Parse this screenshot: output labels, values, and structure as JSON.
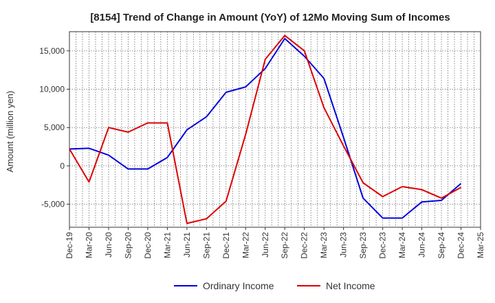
{
  "chart_data": {
    "type": "line",
    "title": "[8154]  Trend of Change in Amount (YoY) of 12Mo Moving Sum of Incomes",
    "xlabel": "",
    "ylabel": "Amount (million yen)",
    "ylim": [
      -8000,
      17500
    ],
    "yticks": [
      -5000,
      0,
      5000,
      10000,
      15000
    ],
    "ytick_labels": [
      "-5,000",
      "0",
      "5,000",
      "10,000",
      "15,000"
    ],
    "x_tick_labels": [
      "Dec-19",
      "Mar-20",
      "Jun-20",
      "Sep-20",
      "Dec-20",
      "Mar-21",
      "Jun-21",
      "Sep-21",
      "Dec-21",
      "Mar-22",
      "Jun-22",
      "Sep-22",
      "Dec-22",
      "Mar-23",
      "Jun-23",
      "Sep-23",
      "Dec-23",
      "Mar-24",
      "Jun-24",
      "Sep-24",
      "Dec-24",
      "Mar-25"
    ],
    "grid": true,
    "legend_position": "bottom",
    "series": [
      {
        "name": "Ordinary Income",
        "color": "#0000dd",
        "values": [
          2200,
          2300,
          1400,
          -400,
          -400,
          1100,
          4700,
          6400,
          9600,
          10300,
          12700,
          16600,
          14300,
          11400,
          3700,
          -4200,
          -6800,
          -6800,
          -4700,
          -4500,
          -2300
        ]
      },
      {
        "name": "Net Income",
        "color": "#dd0000",
        "values": [
          2200,
          -2100,
          5000,
          4400,
          5600,
          5600,
          -7500,
          -6900,
          -4600,
          4100,
          13900,
          17000,
          15000,
          7600,
          2600,
          -2200,
          -4000,
          -2700,
          -3100,
          -4200,
          -2800
        ]
      }
    ]
  }
}
